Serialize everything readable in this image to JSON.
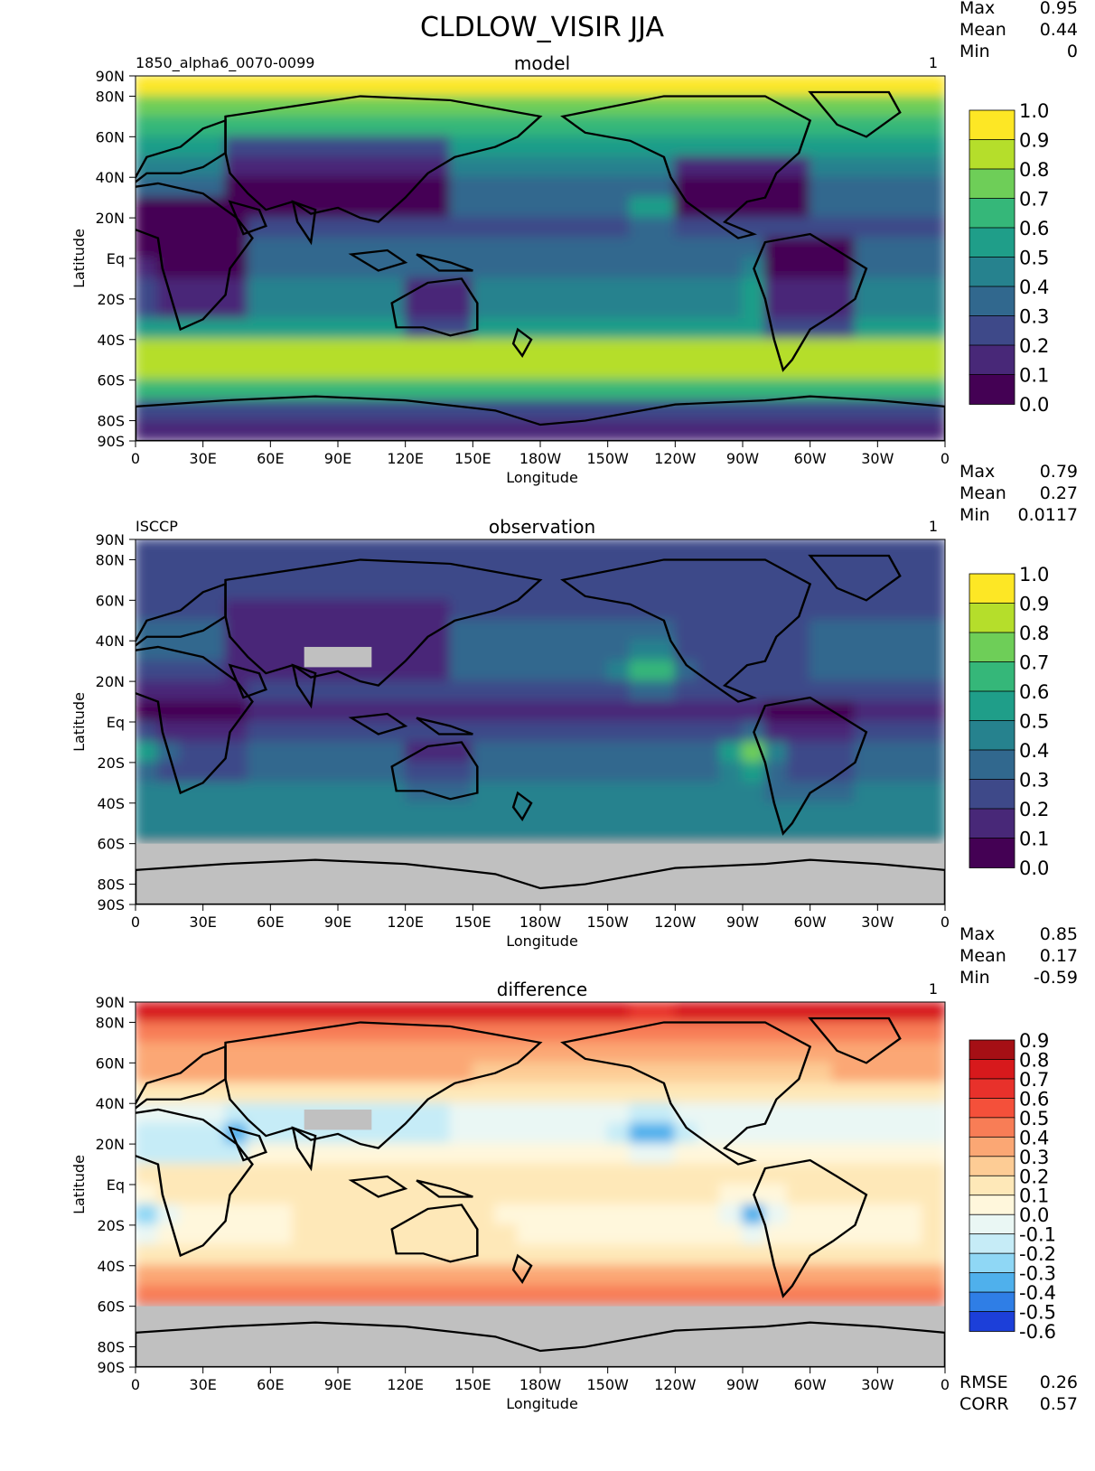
{
  "figure": {
    "title": "CLDLOW_VISIR JJA"
  },
  "panels": [
    {
      "id": "model",
      "title": "model",
      "left_label": "1850_alpha6_0070-0099",
      "right_label": "1",
      "stats": {
        "max_label": "Max",
        "max": "0.95",
        "mean_label": "Mean",
        "mean": "0.44",
        "min_label": "Min",
        "min": "0"
      },
      "xlabel": "Longitude",
      "ylabel": "Latitude",
      "colorbar": {
        "ticks": [
          "1.0",
          "0.9",
          "0.8",
          "0.7",
          "0.6",
          "0.5",
          "0.4",
          "0.3",
          "0.2",
          "0.1",
          "0.0"
        ],
        "colors": [
          "#fde725",
          "#b5de2b",
          "#6ece58",
          "#35b779",
          "#1f9e89",
          "#26828e",
          "#31688e",
          "#3e4989",
          "#482878",
          "#440154"
        ]
      }
    },
    {
      "id": "observation",
      "title": "observation",
      "left_label": "ISCCP",
      "right_label": "1",
      "stats": {
        "max_label": "Max",
        "max": "0.79",
        "mean_label": "Mean",
        "mean": "0.27",
        "min_label": "Min",
        "min": "0.0117"
      },
      "xlabel": "Longitude",
      "ylabel": "Latitude",
      "colorbar": {
        "ticks": [
          "1.0",
          "0.9",
          "0.8",
          "0.7",
          "0.6",
          "0.5",
          "0.4",
          "0.3",
          "0.2",
          "0.1",
          "0.0"
        ],
        "colors": [
          "#fde725",
          "#b5de2b",
          "#6ece58",
          "#35b779",
          "#1f9e89",
          "#26828e",
          "#31688e",
          "#3e4989",
          "#482878",
          "#440154"
        ]
      }
    },
    {
      "id": "difference",
      "title": "difference",
      "left_label": "",
      "right_label": "1",
      "stats": {
        "max_label": "Max",
        "max": "0.85",
        "mean_label": "Mean",
        "mean": "0.17",
        "min_label": "Min",
        "min": "-0.59"
      },
      "xlabel": "Longitude",
      "ylabel": "Latitude",
      "colorbar": {
        "ticks": [
          "0.9",
          "0.8",
          "0.7",
          "0.6",
          "0.5",
          "0.4",
          "0.3",
          "0.2",
          "0.1",
          "0.0",
          "-0.1",
          "-0.2",
          "-0.3",
          "-0.4",
          "-0.5",
          "-0.6"
        ],
        "colors": [
          "#a50f15",
          "#d7191c",
          "#e8312b",
          "#f4503a",
          "#f87d56",
          "#fba774",
          "#fdcc95",
          "#fee8b8",
          "#fff7dc",
          "#eaf7f4",
          "#c6ecf7",
          "#8fd7f5",
          "#4fb0ec",
          "#2f7ee6",
          "#1c3fd9"
        ]
      },
      "footer": {
        "rmse_label": "RMSE",
        "rmse": "0.26",
        "corr_label": "CORR",
        "corr": "0.57"
      }
    }
  ],
  "axes": {
    "lon_ticks": [
      "0",
      "30E",
      "60E",
      "90E",
      "120E",
      "150E",
      "180W",
      "150W",
      "120W",
      "90W",
      "60W",
      "30W",
      "0"
    ],
    "lat_ticks": [
      "90N",
      "80N",
      "60N",
      "40N",
      "20N",
      "Eq",
      "20S",
      "40S",
      "60S",
      "80S",
      "90S"
    ]
  },
  "chart_data": [
    {
      "type": "heatmap",
      "title": "model",
      "xlabel": "Longitude",
      "ylabel": "Latitude",
      "xlim": [
        0,
        360
      ],
      "ylim": [
        -90,
        90
      ],
      "color_levels": [
        0.0,
        0.1,
        0.2,
        0.3,
        0.4,
        0.5,
        0.6,
        0.7,
        0.8,
        0.9,
        1.0
      ],
      "stats": {
        "max": 0.95,
        "mean": 0.44,
        "min": 0
      },
      "zonal_profile": {
        "lat": [
          85,
          75,
          65,
          55,
          45,
          35,
          25,
          15,
          5,
          -5,
          -15,
          -25,
          -35,
          -45,
          -55,
          -65,
          -75,
          -85
        ],
        "value": [
          0.95,
          0.7,
          0.6,
          0.55,
          0.45,
          0.3,
          0.3,
          0.25,
          0.3,
          0.35,
          0.4,
          0.45,
          0.55,
          0.8,
          0.85,
          0.6,
          0.2,
          0.1
        ]
      }
    },
    {
      "type": "heatmap",
      "title": "observation",
      "xlabel": "Longitude",
      "ylabel": "Latitude",
      "xlim": [
        0,
        360
      ],
      "ylim": [
        -90,
        90
      ],
      "color_levels": [
        0.0,
        0.1,
        0.2,
        0.3,
        0.4,
        0.5,
        0.6,
        0.7,
        0.8,
        0.9,
        1.0
      ],
      "stats": {
        "max": 0.79,
        "mean": 0.27,
        "min": 0.0117
      },
      "zonal_profile": {
        "lat": [
          85,
          75,
          65,
          55,
          45,
          35,
          25,
          15,
          5,
          -5,
          -15,
          -25,
          -35,
          -45,
          -55,
          -65,
          -75,
          -85
        ],
        "value": [
          0.25,
          0.25,
          0.25,
          0.25,
          0.3,
          0.3,
          0.3,
          0.2,
          0.15,
          0.2,
          0.3,
          0.35,
          0.4,
          0.45,
          0.4,
          null,
          null,
          null
        ]
      }
    },
    {
      "type": "heatmap",
      "title": "difference",
      "xlabel": "Longitude",
      "ylabel": "Latitude",
      "xlim": [
        0,
        360
      ],
      "ylim": [
        -90,
        90
      ],
      "color_levels": [
        -0.6,
        -0.5,
        -0.4,
        -0.3,
        -0.2,
        -0.1,
        0.0,
        0.1,
        0.2,
        0.3,
        0.4,
        0.5,
        0.6,
        0.7,
        0.8,
        0.9
      ],
      "stats": {
        "max": 0.85,
        "mean": 0.17,
        "min": -0.59,
        "rmse": 0.26,
        "corr": 0.57
      },
      "zonal_profile": {
        "lat": [
          85,
          75,
          65,
          55,
          45,
          35,
          25,
          15,
          5,
          -5,
          -15,
          -25,
          -35,
          -45,
          -55,
          -65,
          -75,
          -85
        ],
        "value": [
          0.7,
          0.45,
          0.35,
          0.3,
          0.15,
          0.0,
          0.0,
          0.05,
          0.15,
          0.15,
          0.1,
          0.1,
          0.15,
          0.35,
          0.45,
          null,
          null,
          null
        ]
      }
    }
  ]
}
